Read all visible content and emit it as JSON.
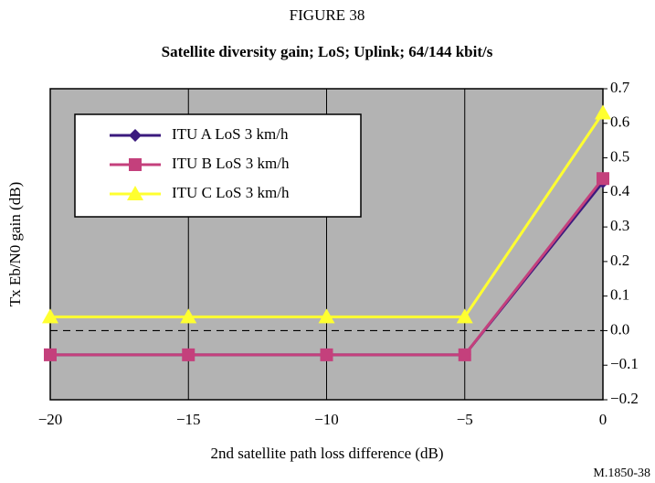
{
  "chart_data": {
    "type": "line",
    "figure_label": "FIGURE 38",
    "title": "Satellite diversity gain; LoS; Uplink; 64/144 kbit/s",
    "x_label": "2nd satellite path loss difference (dB)",
    "y_label": "Tx Eb/N0 gain (dB)",
    "footnote": "M.1850-38",
    "x": [
      -20,
      -15,
      -10,
      -5,
      0
    ],
    "series": [
      {
        "name": "ITU A LoS 3 km/h",
        "color": "#3b1a7e",
        "marker": "diamond",
        "values": [
          -0.07,
          -0.07,
          -0.07,
          -0.07,
          0.43
        ]
      },
      {
        "name": "ITU B LoS 3 km/h",
        "color": "#c4407c",
        "marker": "square",
        "values": [
          -0.07,
          -0.07,
          -0.07,
          -0.07,
          0.44
        ]
      },
      {
        "name": "ITU C LoS 3 km/h",
        "color": "#ffff30",
        "marker": "triangle",
        "values": [
          0.04,
          0.04,
          0.04,
          0.04,
          0.63
        ]
      }
    ],
    "xlim": [
      -20,
      0
    ],
    "xticks": [
      {
        "value": -20,
        "label": "−20"
      },
      {
        "value": -15,
        "label": "−15"
      },
      {
        "value": -10,
        "label": "−10"
      },
      {
        "value": -5,
        "label": "−5"
      },
      0
    ],
    "ylim": [
      -0.2,
      0.7
    ],
    "yticks": [
      {
        "value": -0.2,
        "label": "−0.2"
      },
      {
        "value": -0.1,
        "label": "−0.1"
      },
      {
        "value": 0,
        "label": "0.0"
      },
      0.1,
      0.2,
      0.3,
      0.4,
      0.5,
      0.6,
      0.7
    ],
    "grid": true
  }
}
